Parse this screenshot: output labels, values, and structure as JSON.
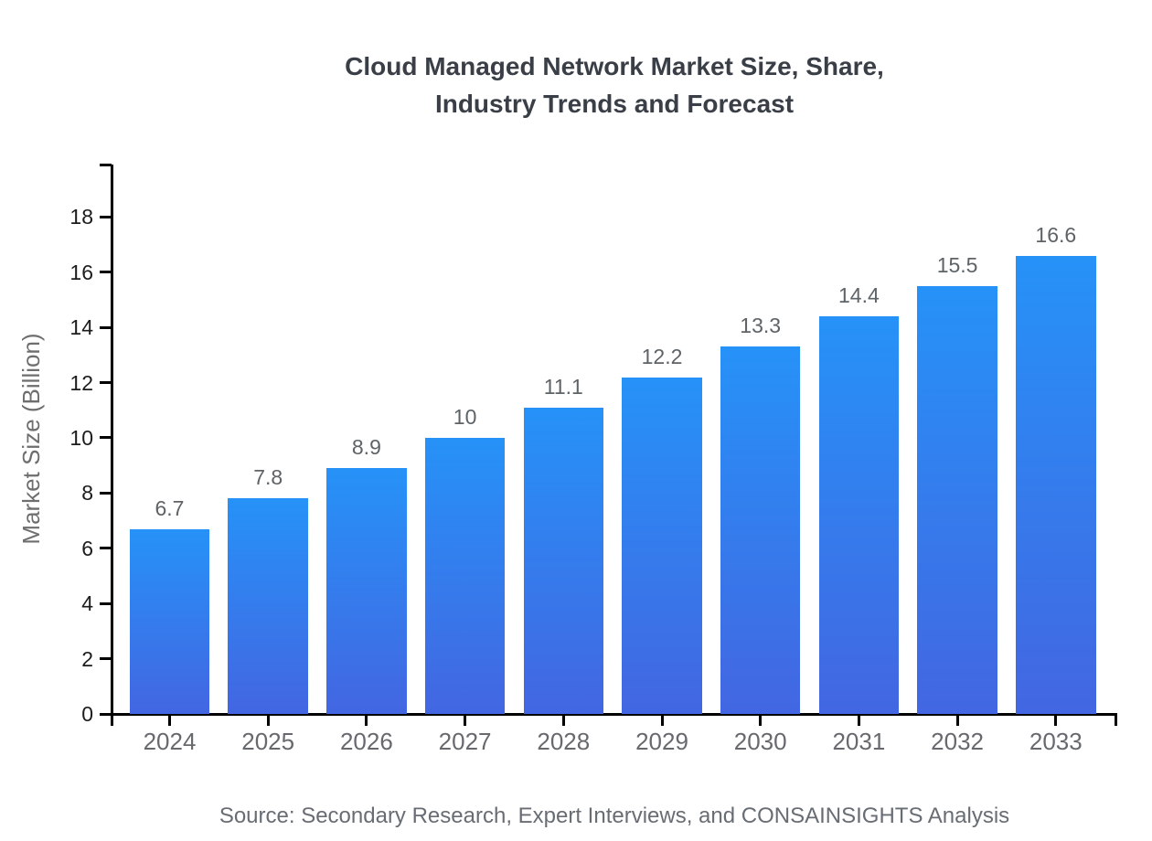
{
  "header": {
    "title_line1": "Cloud Managed Network Market Size, Share,",
    "title_line2": "Industry Trends and Forecast"
  },
  "chart_data": {
    "type": "bar",
    "title": "Cloud Managed Network Market Size, Share, Industry Trends and Forecast",
    "categories": [
      "2024",
      "2025",
      "2026",
      "2027",
      "2028",
      "2029",
      "2030",
      "2031",
      "2032",
      "2033"
    ],
    "values": [
      6.7,
      7.8,
      8.9,
      10,
      11.1,
      12.2,
      13.3,
      14.4,
      15.5,
      16.6
    ],
    "value_labels": [
      "6.7",
      "7.8",
      "8.9",
      "10",
      "11.1",
      "12.2",
      "13.3",
      "14.4",
      "15.5",
      "16.6"
    ],
    "xlabel": "",
    "ylabel": "Market Size (Billion)",
    "ylim": [
      0,
      19.9
    ],
    "yticks": [
      0,
      2,
      4,
      6,
      8,
      10,
      12,
      14,
      16,
      18
    ],
    "grid": false,
    "legend": "none"
  },
  "footer": {
    "source": "Source: Secondary Research, Expert Interviews, and CONSAINSIGHTS Analysis"
  },
  "colors": {
    "background": "#ffffff",
    "bar_gradient_top": "#2692f8",
    "bar_gradient_bottom": "#4366e2",
    "axis": "#000000",
    "y_tick_label": "#1c1c1c",
    "x_tick_label": "#66696d",
    "value_label": "#5d6367",
    "title": "#3a3f47",
    "y_axis_title": "#6e6e6e",
    "source": "#686d74"
  }
}
